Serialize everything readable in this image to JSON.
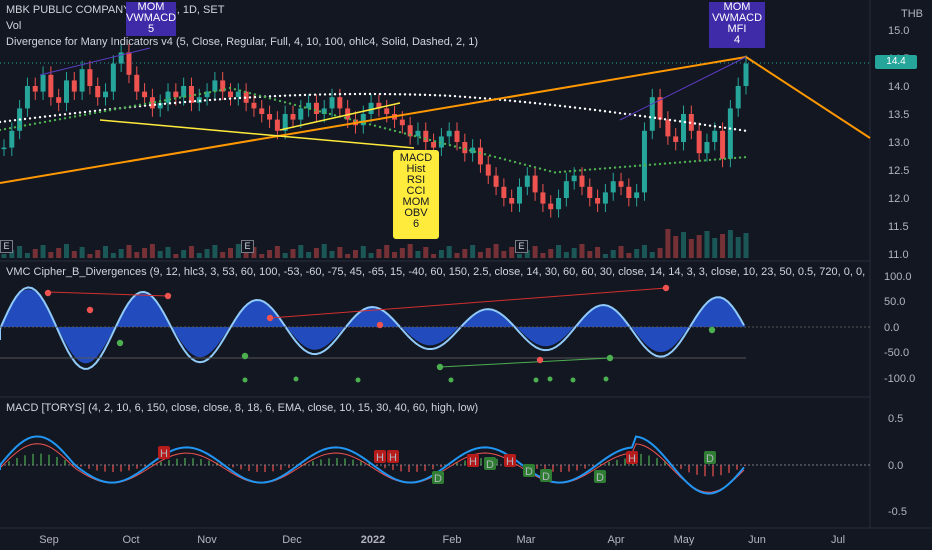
{
  "header": {
    "symbol_line": "MBK PUBLIC COMPANY LIMITED, 1D, SET",
    "vol_label": "Vol",
    "divergence_line": "Divergence for Many Indicators v4 (5, Close, Regular, Full, 4, 10, 100, ohlc4, Solid, Dashed, 2, 1)",
    "currency": "THB",
    "last_price": "14.4"
  },
  "annotations": {
    "top_left_box": [
      "MOM",
      "VWMACD",
      "5"
    ],
    "top_right_box": [
      "MOM",
      "VWMACD",
      "MFI",
      "4"
    ],
    "yellow_box": [
      "MACD",
      "Hist",
      "RSI",
      "CCI",
      "MOM",
      "OBV",
      "6"
    ],
    "earnings_marker": "E"
  },
  "price_axis": [
    "15.0",
    "14.5",
    "14.0",
    "13.5",
    "13.0",
    "12.5",
    "12.0",
    "11.5",
    "11.0"
  ],
  "vmc": {
    "legend": "VMC Cipher_B_Divergences (9, 12, hlc3, 3, 53, 60, 100, -53, -60, -75, 45, -65, 15, -40, 60, 150, 2.5, close, 14, 30, 60, 60, 30, close, 14, 14, 3, 3, close, 10, 23, 50, 0.5, 720, 0, 0,",
    "axis": [
      "100.0",
      "50.0",
      "0.0",
      "-50.0",
      "-100.0"
    ]
  },
  "macd": {
    "legend": "MACD [TORYS] (4, 2, 10, 6, 150, close, close, 8, 18, 6, EMA, close, 10, 15, 30, 40, 60, high, low)",
    "axis": [
      "0.5",
      "0.0",
      "-0.5"
    ],
    "h_label": "H",
    "d_label": "D"
  },
  "time_axis": [
    "Sep",
    "Oct",
    "Nov",
    "Dec",
    "2022",
    "Feb",
    "Mar",
    "Apr",
    "May",
    "Jun",
    "Jul"
  ],
  "colors": {
    "background": "#131722",
    "up": "#26a69a",
    "down": "#ef5350",
    "orange_trend": "#ff9800",
    "yellow_trend": "#ffeb3b",
    "ema_green": "#4caf50",
    "ema_white": "#ffffff",
    "wave_fill": "#2962ff",
    "wave_light": "#90caf9",
    "label_purple": "#3f2aa8",
    "label_yellow": "#ffeb3b"
  }
}
